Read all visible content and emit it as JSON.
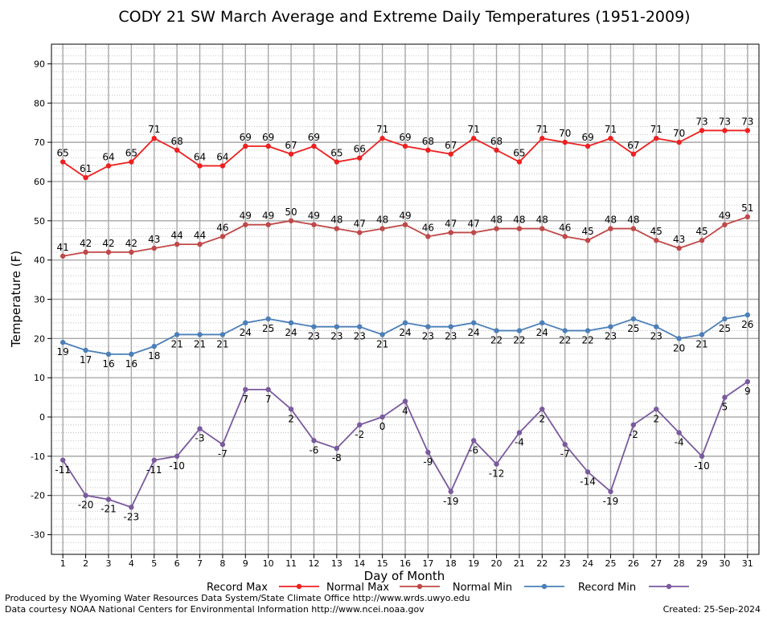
{
  "chart_data": {
    "type": "line",
    "title": "CODY 21 SW March Average and Extreme Daily Temperatures (1951-2009)",
    "xlabel": "Day of Month",
    "ylabel": "Temperature (F)",
    "ylim": [
      -35,
      95
    ],
    "yticks": [
      -30,
      -20,
      -10,
      0,
      10,
      20,
      30,
      40,
      50,
      60,
      70,
      80,
      90
    ],
    "x": [
      1,
      2,
      3,
      4,
      5,
      6,
      7,
      8,
      9,
      10,
      11,
      12,
      13,
      14,
      15,
      16,
      17,
      18,
      19,
      20,
      21,
      22,
      23,
      24,
      25,
      26,
      27,
      28,
      29,
      30,
      31
    ],
    "grid": true,
    "legend_position": "bottom",
    "series": [
      {
        "name": "Record Max",
        "color": "#ee2020",
        "labels_above": true,
        "values": [
          65,
          61,
          64,
          65,
          71,
          68,
          64,
          64,
          69,
          69,
          67,
          69,
          65,
          66,
          71,
          69,
          68,
          67,
          71,
          68,
          65,
          71,
          70,
          69,
          71,
          67,
          71,
          70,
          73,
          73,
          73
        ]
      },
      {
        "name": "Normal Max",
        "color": "#c04848",
        "labels_above": true,
        "values": [
          41,
          42,
          42,
          42,
          43,
          44,
          44,
          46,
          49,
          49,
          50,
          49,
          48,
          47,
          48,
          49,
          46,
          47,
          47,
          48,
          48,
          48,
          46,
          45,
          48,
          48,
          45,
          43,
          45,
          49,
          51
        ]
      },
      {
        "name": "Normal Min",
        "color": "#4c7fb8",
        "labels_above": false,
        "values": [
          19,
          17,
          16,
          16,
          18,
          21,
          21,
          21,
          24,
          25,
          24,
          23,
          23,
          23,
          21,
          24,
          23,
          23,
          24,
          22,
          22,
          24,
          22,
          22,
          23,
          25,
          23,
          20,
          21,
          25,
          26
        ]
      },
      {
        "name": "Record Min",
        "color": "#7a5a9e",
        "labels_above": false,
        "values": [
          -11,
          -20,
          -21,
          -23,
          -11,
          -10,
          -3,
          -7,
          7,
          7,
          2,
          -6,
          -8,
          -2,
          0,
          4,
          -9,
          -19,
          -6,
          -12,
          -4,
          2,
          -7,
          -14,
          -19,
          -2,
          2,
          -4,
          -10,
          5,
          9
        ]
      }
    ]
  },
  "footer": {
    "produced_by": "Produced by the Wyoming Water Resources Data System/State Climate Office http://www.wrds.uwyo.edu",
    "data_courtesy": "Data courtesy NOAA National Centers for Environmental Information http://www.ncei.noaa.gov",
    "created": "Created:  25-Sep-2024"
  }
}
